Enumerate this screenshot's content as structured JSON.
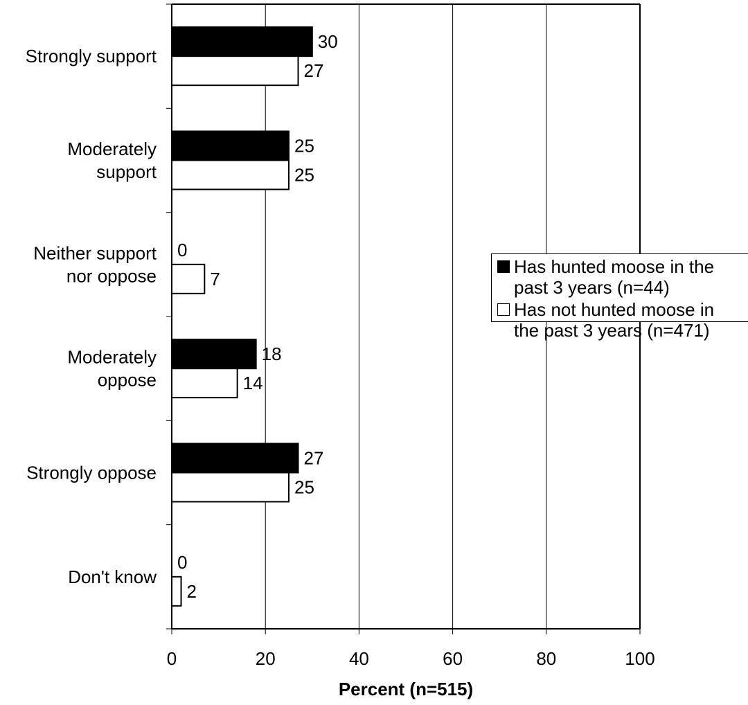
{
  "chart_data": {
    "type": "bar",
    "orientation": "horizontal",
    "categories": [
      [
        "Strongly support"
      ],
      [
        "Moderately",
        "support"
      ],
      [
        "Neither support",
        "nor oppose"
      ],
      [
        "Moderately",
        "oppose"
      ],
      [
        "Strongly oppose"
      ],
      [
        "Don't know"
      ]
    ],
    "series": [
      {
        "name": "Has hunted moose in the past 3 years (n=44)",
        "legend_lines": [
          "Has hunted moose in the",
          "past 3 years (n=44)"
        ],
        "color": "#000000",
        "values": [
          30,
          25,
          0,
          18,
          27,
          0
        ]
      },
      {
        "name": "Has not hunted moose in the past 3 years (n=471)",
        "legend_lines": [
          "Has not hunted moose in",
          "the past 3 years (n=471)"
        ],
        "color": "#ffffff",
        "values": [
          27,
          25,
          7,
          14,
          25,
          2
        ]
      }
    ],
    "xlabel": "Percent (n=515)",
    "xlim": [
      0,
      100
    ],
    "xticks": [
      0,
      20,
      40,
      60,
      80,
      100
    ],
    "grid": "vertical",
    "legend_position": "right"
  }
}
